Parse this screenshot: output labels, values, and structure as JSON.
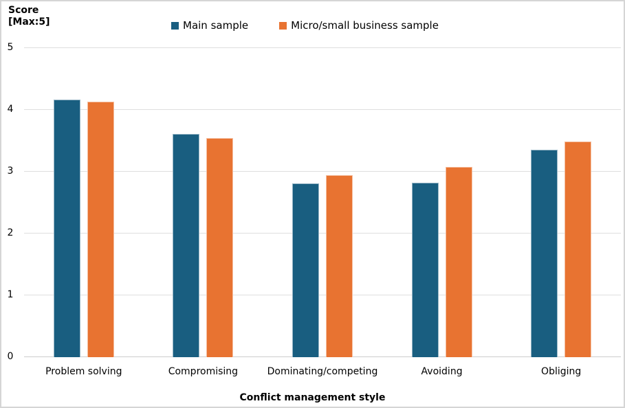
{
  "y_axis_title": "Score\n[Max:5]",
  "x_axis_title": "Conflict management style",
  "legend": [
    {
      "label": "Main sample",
      "color": "#195E80"
    },
    {
      "label": "Micro/small business sample",
      "color": "#E87331"
    }
  ],
  "colors": {
    "main_sample": "#195E80",
    "micro_small_sample": "#E87331",
    "gridline": "#DEDEDE",
    "zero_line": "#CCCCCC"
  },
  "chart_data": {
    "type": "bar",
    "title": "",
    "xlabel": "Conflict management style",
    "ylabel": "Score [Max:5]",
    "categories": [
      "Problem solving",
      "Compromising",
      "Dominating/competing",
      "Avoiding",
      "Obliging"
    ],
    "series": [
      {
        "name": "Main sample",
        "color": "#195E80",
        "values": [
          4.17,
          3.61,
          2.81,
          2.82,
          3.36
        ]
      },
      {
        "name": "Micro/small business sample",
        "color": "#E87331",
        "values": [
          4.13,
          3.54,
          2.95,
          3.08,
          3.49
        ]
      }
    ],
    "ylim": [
      0,
      5
    ],
    "yticks": [
      0,
      1,
      2,
      3,
      4,
      5
    ],
    "grid": true,
    "legend_position": "top-center"
  }
}
